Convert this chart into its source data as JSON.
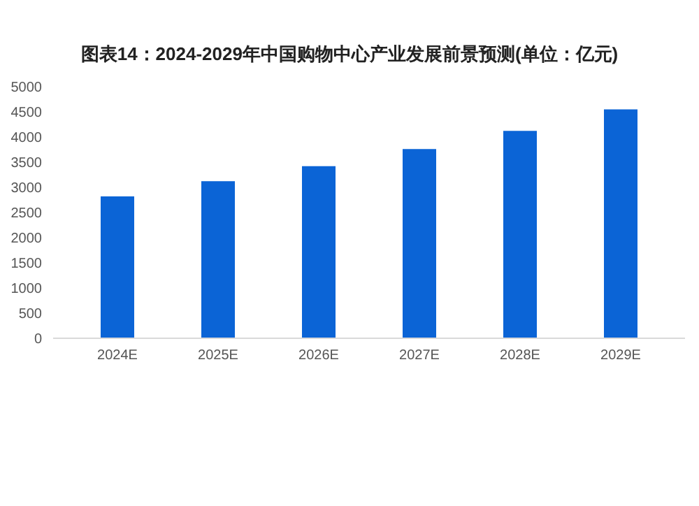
{
  "chart_data": {
    "type": "bar",
    "title": "图表14：2024-2029年中国购物中心产业发展前景预测(单位：亿元)",
    "categories": [
      "2024E",
      "2025E",
      "2026E",
      "2027E",
      "2028E",
      "2029E"
    ],
    "values": [
      2820,
      3120,
      3420,
      3760,
      4120,
      4550
    ],
    "color": "#0b64d6",
    "ylim": [
      0,
      5000
    ],
    "yticks": [
      0,
      500,
      1000,
      1500,
      2000,
      2500,
      3000,
      3500,
      4000,
      4500,
      5000
    ],
    "grid": false,
    "legend": false
  }
}
